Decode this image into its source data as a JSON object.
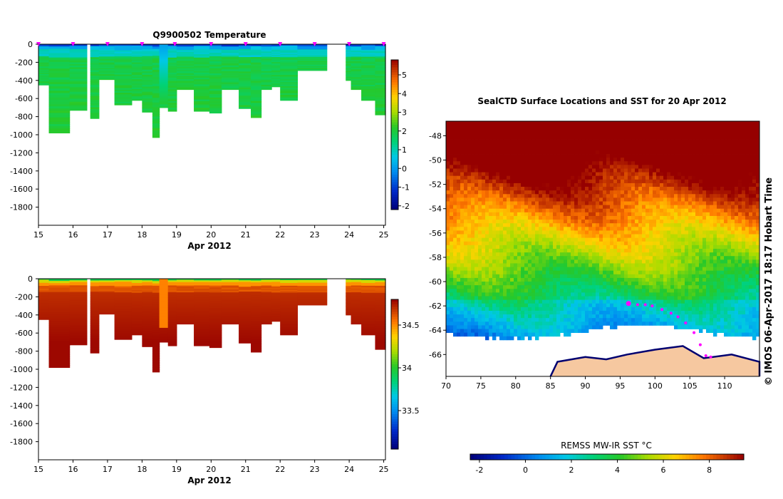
{
  "chart_data": [
    {
      "type": "heatmap",
      "title": "Q9900502  Temperature",
      "xlabel": "Apr 2012",
      "ylabel": "",
      "x_ticks": [
        "15",
        "16",
        "17",
        "18",
        "19",
        "20",
        "21",
        "22",
        "23",
        "24",
        "25"
      ],
      "y_ticks": [
        "0",
        "-200",
        "-400",
        "-600",
        "-800",
        "-1000",
        "-1200",
        "-1400",
        "-1600",
        "-1800"
      ],
      "xlim": [
        15,
        25.05
      ],
      "ylim": [
        -2000,
        0
      ],
      "colorbar": {
        "ticks": [
          "5",
          "4",
          "3",
          "2",
          "1",
          "0",
          "-1",
          "-2"
        ],
        "range": [
          -2.2,
          5.8
        ]
      },
      "profile_markers_day": [
        15,
        16,
        17,
        18,
        18.95,
        20,
        21,
        22,
        23,
        24,
        25
      ],
      "profiles": [
        {
          "t": 15.0,
          "w": 0.3,
          "d": 450
        },
        {
          "t": 15.3,
          "w": 0.6,
          "d": 980
        },
        {
          "t": 15.9,
          "w": 0.5,
          "d": 730
        },
        {
          "t": 16.5,
          "w": 0.25,
          "d": 820
        },
        {
          "t": 16.75,
          "w": 0.45,
          "d": 390
        },
        {
          "t": 17.2,
          "w": 0.5,
          "d": 670
        },
        {
          "t": 17.7,
          "w": 0.3,
          "d": 620
        },
        {
          "t": 18.0,
          "w": 0.3,
          "d": 750
        },
        {
          "t": 18.3,
          "w": 0.2,
          "d": 1030
        },
        {
          "t": 18.5,
          "w": 0.25,
          "d": 700
        },
        {
          "t": 18.75,
          "w": 0.25,
          "d": 740
        },
        {
          "t": 19.0,
          "w": 0.5,
          "d": 500
        },
        {
          "t": 19.5,
          "w": 0.45,
          "d": 740
        },
        {
          "t": 19.95,
          "w": 0.35,
          "d": 760
        },
        {
          "t": 20.3,
          "w": 0.5,
          "d": 500
        },
        {
          "t": 20.8,
          "w": 0.35,
          "d": 710
        },
        {
          "t": 21.15,
          "w": 0.3,
          "d": 810
        },
        {
          "t": 21.45,
          "w": 0.3,
          "d": 500
        },
        {
          "t": 21.75,
          "w": 0.25,
          "d": 470
        },
        {
          "t": 22.0,
          "w": 0.5,
          "d": 620
        },
        {
          "t": 22.5,
          "w": 0.85,
          "d": 290
        },
        {
          "t": 23.9,
          "w": 0.15,
          "d": 400
        },
        {
          "t": 24.05,
          "w": 0.3,
          "d": 500
        },
        {
          "t": 24.35,
          "w": 0.4,
          "d": 620
        },
        {
          "t": 24.75,
          "w": 0.3,
          "d": 780
        }
      ]
    },
    {
      "type": "heatmap",
      "title": "",
      "xlabel": "Apr 2012",
      "ylabel": "",
      "x_ticks": [
        "15",
        "16",
        "17",
        "18",
        "19",
        "20",
        "21",
        "22",
        "23",
        "24",
        "25"
      ],
      "y_ticks": [
        "0",
        "-200",
        "-400",
        "-600",
        "-800",
        "-1000",
        "-1200",
        "-1400",
        "-1600",
        "-1800"
      ],
      "xlim": [
        15,
        25.05
      ],
      "ylim": [
        -2000,
        0
      ],
      "colorbar": {
        "ticks": [
          "34.5",
          "34",
          "33.5"
        ],
        "range": [
          33.05,
          34.8
        ]
      }
    },
    {
      "type": "heatmap",
      "title": "SealCTD Surface Locations and SST for 20 Apr 2012",
      "x_ticks": [
        "70",
        "75",
        "80",
        "85",
        "90",
        "95",
        "100",
        "105",
        "110"
      ],
      "y_ticks": [
        "-48",
        "-50",
        "-52",
        "-54",
        "-56",
        "-58",
        "-60",
        "-62",
        "-64",
        "-66"
      ],
      "xlim": [
        70,
        115
      ],
      "ylim": [
        -67.8,
        -46.8
      ],
      "colorbar_label": "REMSS MW-IR SST °C",
      "colorbar": {
        "ticks": [
          "-2",
          "0",
          "2",
          "4",
          "6",
          "8"
        ],
        "range": [
          -2.4,
          9.5
        ]
      },
      "track_points": [
        {
          "lon": 96.2,
          "lat": -61.8
        },
        {
          "lon": 97.5,
          "lat": -61.9
        },
        {
          "lon": 98.6,
          "lat": -61.9
        },
        {
          "lon": 99.6,
          "lat": -62.0
        },
        {
          "lon": 101.0,
          "lat": -62.3
        },
        {
          "lon": 102.3,
          "lat": -62.6
        },
        {
          "lon": 103.3,
          "lat": -62.9
        },
        {
          "lon": 104.4,
          "lat": -63.4
        },
        {
          "lon": 105.6,
          "lat": -64.2
        },
        {
          "lon": 106.5,
          "lat": -65.2
        },
        {
          "lon": 107.3,
          "lat": -66.1
        },
        {
          "lon": 108.0,
          "lat": -66.2
        }
      ],
      "side_text": "© IMOS 06-Apr-2017 18:17 Hobart Time"
    }
  ],
  "colors": {
    "magenta": "#ff00ff",
    "land": "#f6c8a0",
    "ice_edge": "#ffffff",
    "coast": "#000070"
  }
}
